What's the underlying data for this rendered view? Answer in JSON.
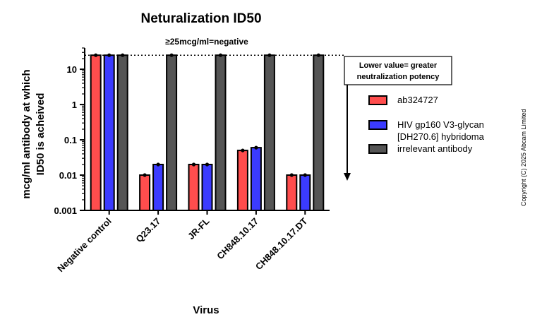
{
  "chart_data": {
    "type": "bar",
    "title": "Neturalization ID50",
    "subtitle": "≥25mcg/ml=negative",
    "xlabel": "Virus",
    "ylabel": [
      "mcg/ml antibody at which",
      "ID50 is acheived"
    ],
    "yscale": "log",
    "ylim": [
      0.001,
      40
    ],
    "yticks": [
      {
        "value": 10,
        "label": "10"
      },
      {
        "value": 1,
        "label": "1"
      },
      {
        "value": 0.1,
        "label": "0.1"
      },
      {
        "value": 0.01,
        "label": "0.01"
      },
      {
        "value": 0.001,
        "label": "0.001"
      }
    ],
    "threshold": 25,
    "categories": [
      "Negative control",
      "Q23.17",
      "JR-FL",
      "CH848.10.17",
      "CH848.10.17.DT"
    ],
    "series": [
      {
        "name": "ab324727",
        "color": "#ff4d4d",
        "values": [
          25,
          0.01,
          0.02,
          0.05,
          0.01
        ]
      },
      {
        "name": "HIV gp160 V3-glycan [DH270.6] hybridoma",
        "color": "#3b3bff",
        "values": [
          25,
          0.02,
          0.02,
          0.06,
          0.01
        ]
      },
      {
        "name": "irrelevant antibody",
        "color": "#555555",
        "values": [
          25,
          25,
          25,
          25,
          25
        ]
      }
    ],
    "legend": {
      "position": "right",
      "entries": [
        {
          "lines": [
            "ab324727"
          ]
        },
        {
          "lines": [
            "HIV gp160 V3-glycan",
            "[DH270.6] hybridoma"
          ]
        },
        {
          "lines": [
            "irrelevant antibody"
          ]
        }
      ]
    },
    "annotation": [
      "Lower value= greater",
      "neutralization potency"
    ],
    "copyright": "Copyright (C) 2025 Abcam Limited"
  }
}
